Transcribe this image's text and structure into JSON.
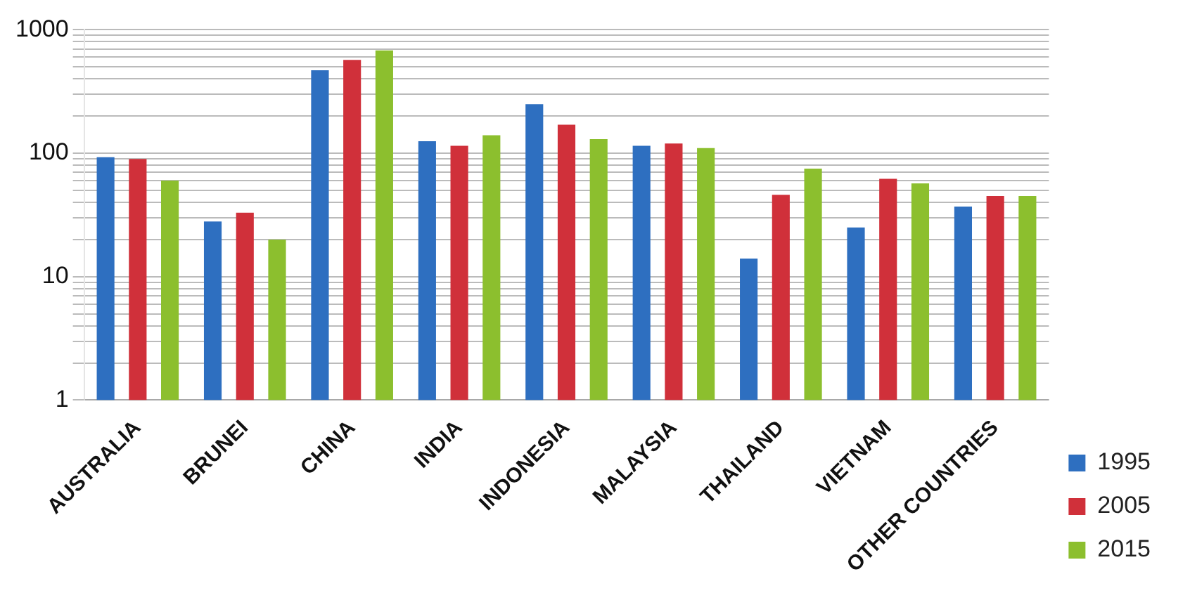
{
  "chart_data": {
    "type": "bar",
    "categories": [
      "AUSTRALIA",
      "BRUNEI",
      "CHINA",
      "INDIA",
      "INDONESIA",
      "MALAYSIA",
      "THAILAND",
      "VIETNAM",
      "OTHER COUNTRIES"
    ],
    "series": [
      {
        "name": "1995",
        "color": "#2e6fc0",
        "values": [
          93,
          28,
          470,
          125,
          250,
          115,
          14,
          25,
          37
        ]
      },
      {
        "name": "2005",
        "color": "#d0303a",
        "values": [
          90,
          33,
          570,
          115,
          170,
          120,
          46,
          62,
          45
        ]
      },
      {
        "name": "2015",
        "color": "#8cbf2e",
        "values": [
          60,
          20,
          680,
          140,
          130,
          110,
          75,
          57,
          45
        ]
      }
    ],
    "log": true,
    "ylim": [
      1,
      1000
    ],
    "yticks": [
      1,
      {
        "value": 2,
        "label": null
      },
      {
        "value": 3,
        "label": null
      },
      {
        "value": 4,
        "label": null
      },
      {
        "value": 5,
        "label": null
      },
      {
        "value": 6,
        "label": null
      },
      {
        "value": 7,
        "label": null
      },
      {
        "value": 8,
        "label": null
      },
      {
        "value": 9,
        "label": null
      },
      10,
      {
        "value": 20,
        "label": null
      },
      {
        "value": 30,
        "label": null
      },
      {
        "value": 40,
        "label": null
      },
      {
        "value": 50,
        "label": null
      },
      {
        "value": 60,
        "label": null
      },
      {
        "value": 70,
        "label": null
      },
      {
        "value": 80,
        "label": null
      },
      {
        "value": 90,
        "label": null
      },
      100,
      {
        "value": 200,
        "label": null
      },
      {
        "value": 300,
        "label": null
      },
      {
        "value": 400,
        "label": null
      },
      {
        "value": 500,
        "label": null
      },
      {
        "value": 600,
        "label": null
      },
      {
        "value": 700,
        "label": null
      },
      {
        "value": 800,
        "label": null
      },
      {
        "value": 900,
        "label": null
      },
      1000
    ],
    "grid": "y",
    "legend": "right"
  }
}
